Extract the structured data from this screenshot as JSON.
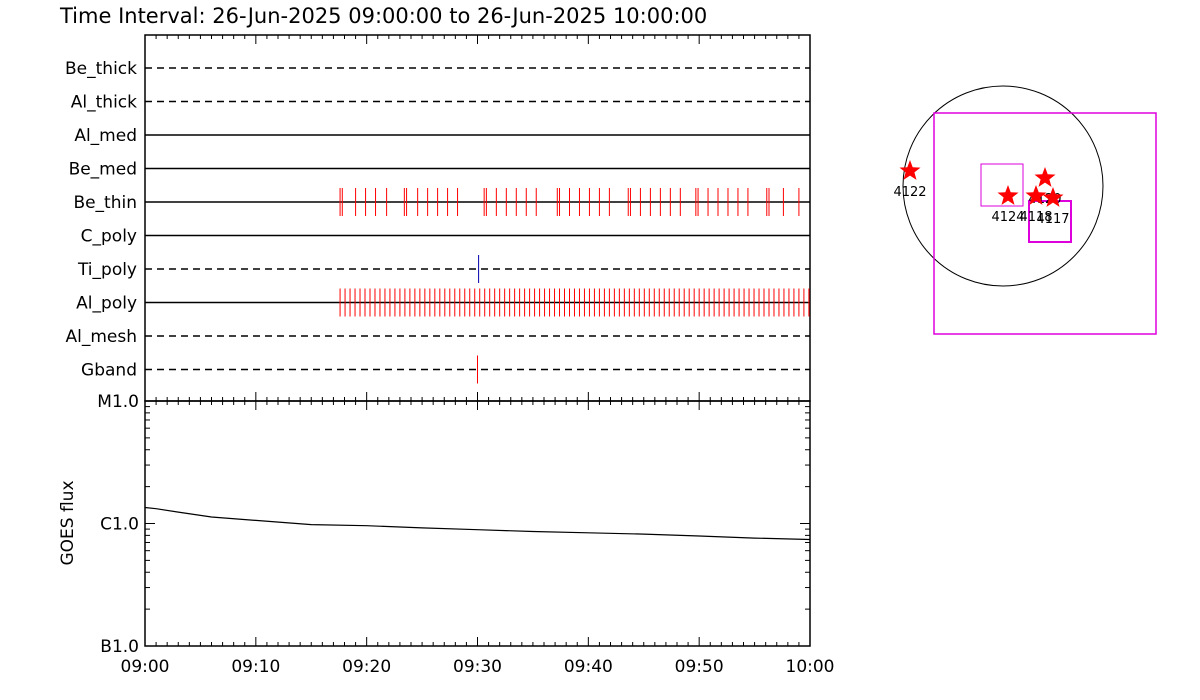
{
  "title": "Time Interval: 26-Jun-2025 09:00:00 to 26-Jun-2025 10:00:00",
  "chart_data": [
    {
      "type": "scatter",
      "description_label": "exposure timeline",
      "x_unit": "minutes after 09:00",
      "xlim": [
        0,
        60
      ],
      "rows": [
        {
          "label": "Be_thick",
          "line": "dashed",
          "events": [],
          "event_color": "#ff0000"
        },
        {
          "label": "Al_thick",
          "line": "dashed",
          "events": [],
          "event_color": "#ff0000"
        },
        {
          "label": "Al_med",
          "line": "solid",
          "events": [],
          "event_color": "#ff0000"
        },
        {
          "label": "Be_med",
          "line": "solid",
          "events": [],
          "event_color": "#ff0000"
        },
        {
          "label": "Be_thin",
          "line": "solid",
          "event_color": "#ff0000",
          "events": [
            17.6,
            17.8,
            19.0,
            19.9,
            20.8,
            21.8,
            23.4,
            23.6,
            24.6,
            25.5,
            26.4,
            27.3,
            28.2,
            30.6,
            30.8,
            31.7,
            32.6,
            33.5,
            34.4,
            35.3,
            37.2,
            37.4,
            38.3,
            39.2,
            40.1,
            41.0,
            41.9,
            43.6,
            43.8,
            44.7,
            45.6,
            46.5,
            47.4,
            48.3,
            49.7,
            49.9,
            50.8,
            51.7,
            52.6,
            53.5,
            54.4,
            56.1,
            56.3,
            57.6,
            59.0
          ]
        },
        {
          "label": "C_poly",
          "line": "solid",
          "events": [],
          "event_color": "#ff0000"
        },
        {
          "label": "Ti_poly",
          "line": "dashed",
          "events": [
            30.1
          ],
          "event_color": "#0000aa"
        },
        {
          "label": "Al_poly",
          "line": "solid",
          "event_color": "#ff0000",
          "dense_range": [
            17.6,
            59.9
          ],
          "dense_step": 0.45,
          "events": []
        },
        {
          "label": "Al_mesh",
          "line": "dashed",
          "events": [],
          "event_color": "#ff0000"
        },
        {
          "label": "Gband",
          "line": "dashed",
          "events": [
            30.0
          ],
          "event_color": "#ff0000"
        }
      ]
    },
    {
      "type": "line",
      "ylabel": "GOES flux",
      "y_scale": "log",
      "ylim": [
        1e-07,
        1e-05
      ],
      "y_ticks": [
        {
          "value": 1e-05,
          "label": "M1.0"
        },
        {
          "value": 1e-06,
          "label": "C1.0"
        },
        {
          "value": 1e-07,
          "label": "B1.0"
        }
      ],
      "x_tick_labels": [
        "09:00",
        "09:10",
        "09:20",
        "09:30",
        "09:40",
        "09:50",
        "10:00"
      ],
      "series": [
        {
          "color": "#000000",
          "x": [
            "09:00",
            "09:01",
            "09:03",
            "09:06",
            "09:10",
            "09:15",
            "09:20",
            "09:25",
            "09:30",
            "09:35",
            "09:40",
            "09:45",
            "09:50",
            "09:55",
            "10:00"
          ],
          "y": [
            1.35e-06,
            1.32e-06,
            1.24e-06,
            1.13e-06,
            1.06e-06,
            9.8e-07,
            9.6e-07,
            9.2e-07,
            8.9e-07,
            8.6e-07,
            8.4e-07,
            8.2e-07,
            7.9e-07,
            7.6e-07,
            7.4e-07
          ]
        }
      ]
    },
    {
      "type": "scatter",
      "description_label": "solar disk",
      "regions": [
        {
          "label": "4122",
          "x": -0.93,
          "y": 0.15
        },
        {
          "label": "4120",
          "x": 0.42,
          "y": 0.08
        },
        {
          "label": "4124",
          "x": 0.05,
          "y": -0.1
        },
        {
          "label": "4118",
          "x": 0.33,
          "y": -0.1
        },
        {
          "label": "4117",
          "x": 0.5,
          "y": -0.12
        }
      ],
      "star_color": "#ff0000",
      "box_color": "#dd00dd"
    }
  ]
}
